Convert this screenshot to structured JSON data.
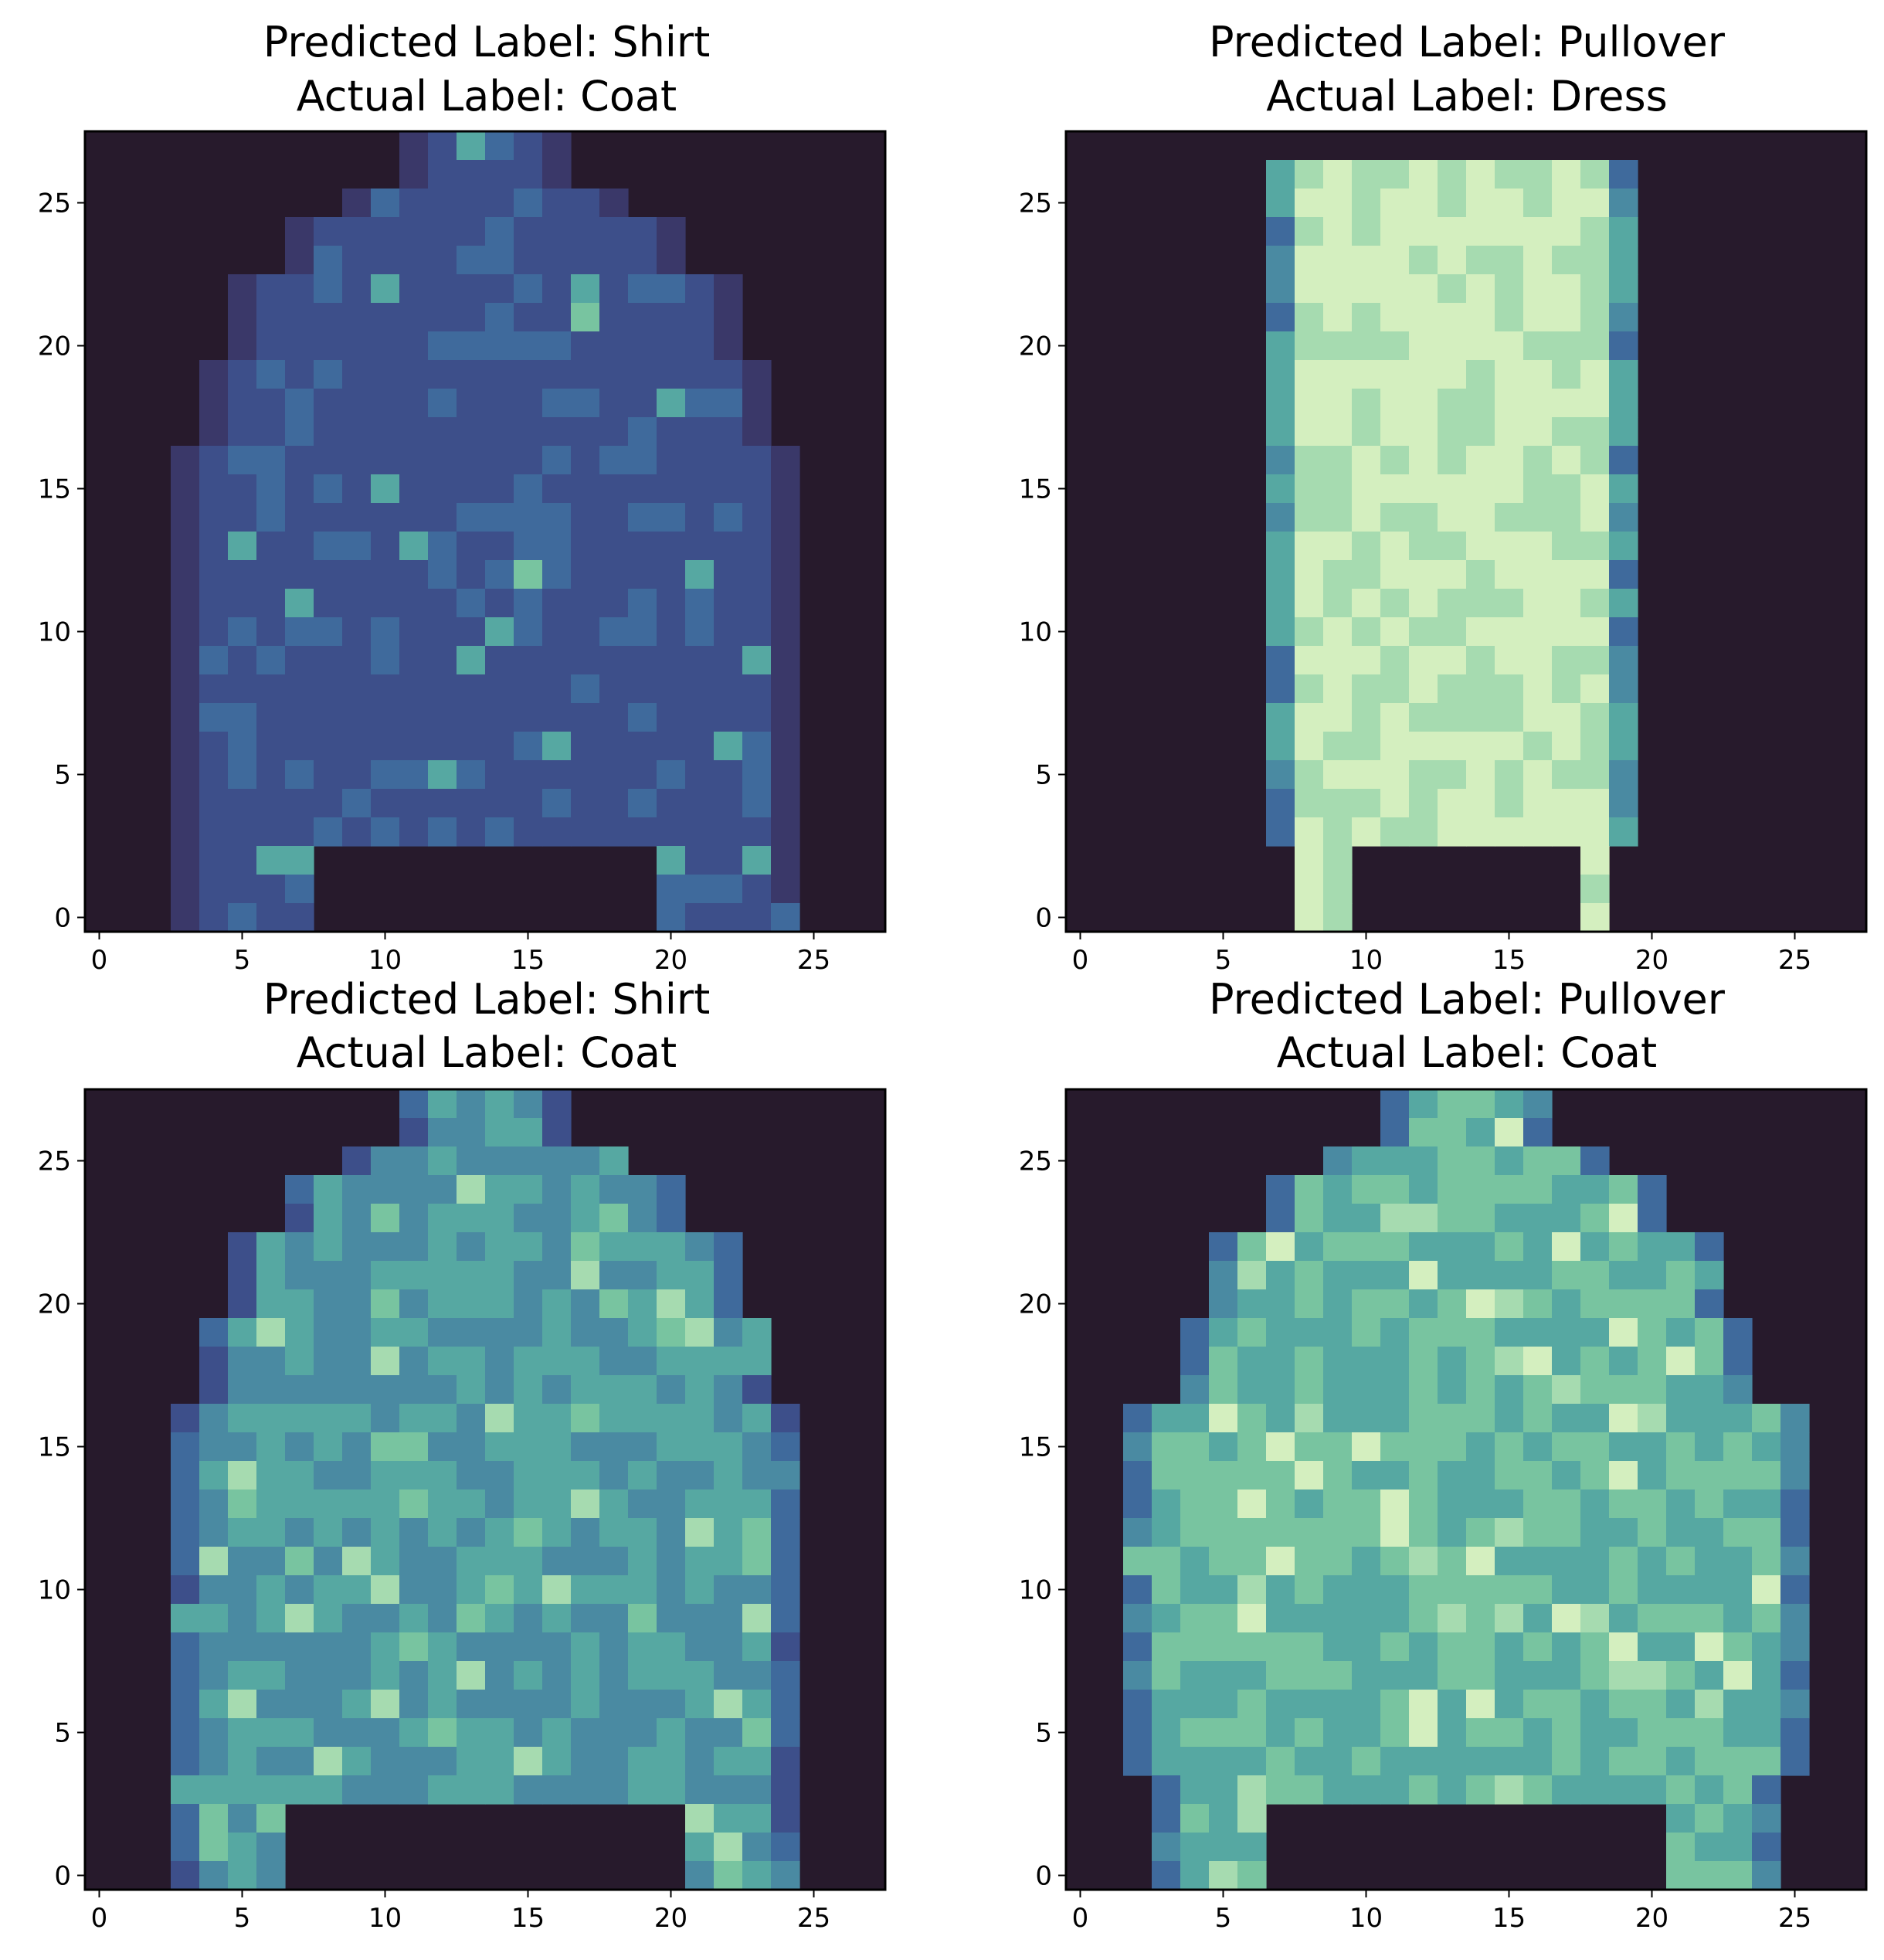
{
  "figure": {
    "background": "#ffffff"
  },
  "chart_data": [
    {
      "type": "heatmap",
      "title_line1": "Predicted Label: Shirt",
      "title_line2": "Actual Label: Coat",
      "xlim": [
        -0.5,
        27.5
      ],
      "ylim": [
        -0.5,
        27.5
      ],
      "xticks": [
        0,
        5,
        10,
        15,
        20,
        25
      ],
      "yticks": [
        0,
        5,
        10,
        15,
        20,
        25
      ],
      "colormap": "mako (dark purple to pale yellow)",
      "background": "#271a2c",
      "rows": [
        "00000000000000000000000000",
        "00000000000033330000000000",
        "00000000000334433330000000",
        "00000000033333333333300000",
        "00000000333333333333333000",
        "00000003333333333333333300",
        "00000033333333333333333330",
        "00000333333333333333333333",
        "00000333333333333333333333",
        "00003333333333333333333333",
        "00003333333333333333333333",
        "00003333333333333333333333",
        "00003333333333333333333333",
        "00003333333333333333333333",
        "00003333333333333333333333",
        "00003333333333333333333333",
        "00003333333333333333333333",
        "00003333333333333333333333",
        "00033333333333333333333333",
        "00033333333333333333333333",
        "00033333333333333333333333",
        "00033333333333333333333333",
        "00033333333333333333333333",
        "00033333333333333333333333",
        "00333333333333333333333333",
        "00333333003333333333333333",
        "03333333000033333330033333",
        "03333333000000000000033333"
      ],
      "row_shift": 0
    },
    {
      "type": "heatmap",
      "title_line1": "Predicted Label: Pullover",
      "title_line2": "Actual Label: Dress",
      "xlim": [
        -0.5,
        27.5
      ],
      "ylim": [
        -0.5,
        27.5
      ],
      "xticks": [
        0,
        5,
        10,
        15,
        20,
        25
      ],
      "yticks": [
        0,
        5,
        10,
        15,
        20,
        25
      ],
      "colormap": "mako (dark purple to pale yellow)",
      "background": "#271a2c"
    },
    {
      "type": "heatmap",
      "title_line1": "Predicted Label: Shirt",
      "title_line2": "Actual Label: Coat",
      "xlim": [
        -0.5,
        27.5
      ],
      "ylim": [
        -0.5,
        27.5
      ],
      "xticks": [
        0,
        5,
        10,
        15,
        20,
        25
      ],
      "yticks": [
        0,
        5,
        10,
        15,
        20,
        25
      ],
      "colormap": "mako (dark purple to pale yellow)",
      "background": "#271a2c"
    },
    {
      "type": "heatmap",
      "title_line1": "Predicted Label: Pullover",
      "title_line2": "Actual Label: Coat",
      "xlim": [
        -0.5,
        27.5
      ],
      "ylim": [
        -0.5,
        27.5
      ],
      "xticks": [
        0,
        5,
        10,
        15,
        20,
        25
      ],
      "yticks": [
        0,
        5,
        10,
        15,
        20,
        25
      ],
      "colormap": "mako (dark purple to pale yellow)",
      "background": "#271a2c"
    }
  ]
}
